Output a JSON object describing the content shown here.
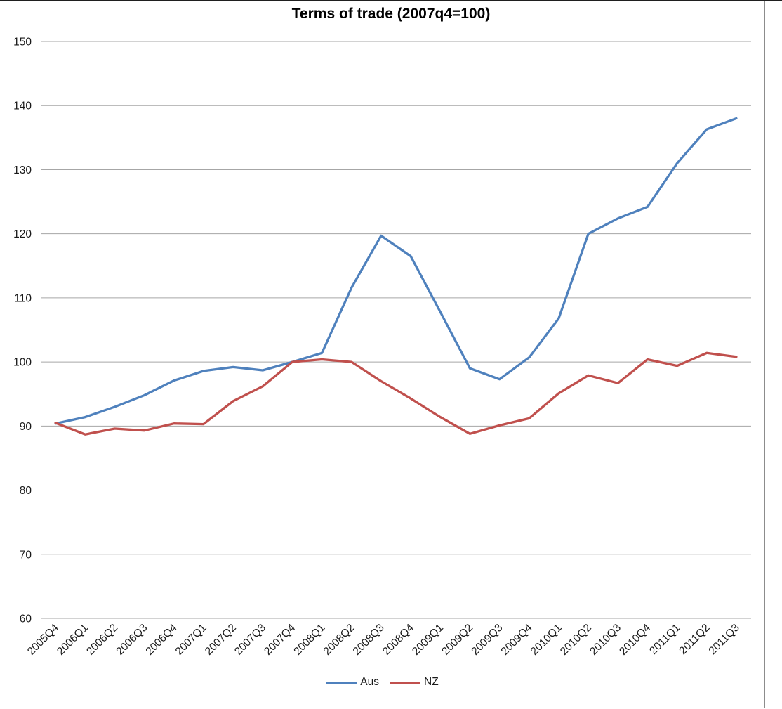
{
  "title": "Terms of trade (2007q4=100)",
  "colors": {
    "aus": "#4F81BD",
    "nz": "#C0504D",
    "gridline": "#A6A6A6",
    "axis_text": "#1a1a1a",
    "background": "#FFFFFF"
  },
  "chart_data": {
    "type": "line",
    "title": "Terms of trade (2007q4=100)",
    "xlabel": "",
    "ylabel": "",
    "ylim": [
      60,
      150
    ],
    "ytick_interval": 10,
    "grid": "horizontal",
    "legend_position": "bottom",
    "categories": [
      "2005Q4",
      "2006Q1",
      "2006Q2",
      "2006Q3",
      "2006Q4",
      "2007Q1",
      "2007Q2",
      "2007Q3",
      "2007Q4",
      "2008Q1",
      "2008Q2",
      "2008Q3",
      "2008Q4",
      "2009Q1",
      "2009Q2",
      "2009Q3",
      "2009Q4",
      "2010Q1",
      "2010Q2",
      "2010Q3",
      "2010Q4",
      "2011Q1",
      "2011Q2",
      "2011Q3"
    ],
    "series": [
      {
        "name": "Aus",
        "color": "#4F81BD",
        "values": [
          90.4,
          91.4,
          93.0,
          94.8,
          97.1,
          98.6,
          99.2,
          98.7,
          100.0,
          101.4,
          111.6,
          119.7,
          116.5,
          107.8,
          99.0,
          97.3,
          100.7,
          106.8,
          120.0,
          122.4,
          124.2,
          131.0,
          136.3,
          138.0
        ]
      },
      {
        "name": "NZ",
        "color": "#C0504D",
        "values": [
          90.5,
          88.7,
          89.6,
          89.3,
          90.4,
          90.3,
          93.9,
          96.2,
          100.0,
          100.4,
          100.0,
          97.0,
          94.3,
          91.4,
          88.8,
          90.1,
          91.2,
          95.1,
          97.9,
          96.7,
          100.4,
          99.4,
          101.4,
          100.8
        ]
      }
    ]
  }
}
